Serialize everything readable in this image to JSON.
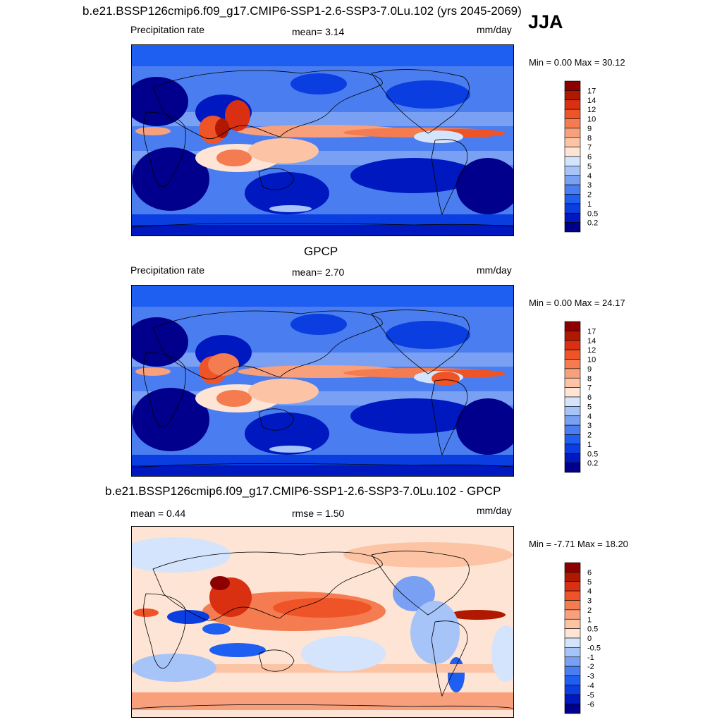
{
  "main_title": "b.e21.BSSP126cmip6.f09_g17.CMIP6-SSP1-2.6-SSP3-7.0Lu.102 (yrs 2045-2069)",
  "season": "JJA",
  "panels": [
    {
      "title": "",
      "left_label": "Precipitation rate",
      "center_label": "mean=   3.14",
      "right_label": "mm/day",
      "minmax": "Min =   0.00 Max =  30.12"
    },
    {
      "title": "GPCP",
      "left_label": "Precipitation rate",
      "center_label": "mean=   2.70",
      "right_label": "mm/day",
      "minmax": "Min =   0.00 Max =  24.17"
    },
    {
      "title": "b.e21.BSSP126cmip6.f09_g17.CMIP6-SSP1-2.6-SSP3-7.0Lu.102 - GPCP",
      "left_label": "mean =   0.44",
      "center_label": "rmse =   1.50",
      "right_label": "mm/day",
      "minmax": "Min =  -7.71 Max =  18.20"
    }
  ],
  "chart_data": [
    {
      "type": "heatmap",
      "title": "Precipitation rate",
      "units": "mm/day",
      "mean": 3.14,
      "min": 0.0,
      "max": 30.12,
      "colorbar": {
        "levels": [
          "0.2",
          "0.5",
          "1",
          "2",
          "3",
          "4",
          "5",
          "6",
          "7",
          "8",
          "9",
          "10",
          "12",
          "14",
          "17"
        ],
        "colors": [
          "#00008c",
          "#0018c0",
          "#0a3ee0",
          "#1e5ef0",
          "#4a7ef0",
          "#7aa0f4",
          "#a6c4f8",
          "#d4e4fc",
          "#fde4d4",
          "#fcc4a4",
          "#f8a07c",
          "#f47c50",
          "#ee5428",
          "#d83010",
          "#b01800",
          "#8c0000"
        ]
      }
    },
    {
      "type": "heatmap",
      "title": "GPCP",
      "units": "mm/day",
      "mean": 2.7,
      "min": 0.0,
      "max": 24.17,
      "colorbar": {
        "levels": [
          "0.2",
          "0.5",
          "1",
          "2",
          "3",
          "4",
          "5",
          "6",
          "7",
          "8",
          "9",
          "10",
          "12",
          "14",
          "17"
        ],
        "colors": [
          "#00008c",
          "#0018c0",
          "#0a3ee0",
          "#1e5ef0",
          "#4a7ef0",
          "#7aa0f4",
          "#a6c4f8",
          "#d4e4fc",
          "#fde4d4",
          "#fcc4a4",
          "#f8a07c",
          "#f47c50",
          "#ee5428",
          "#d83010",
          "#b01800",
          "#8c0000"
        ]
      }
    },
    {
      "type": "heatmap",
      "title": "b.e21.BSSP126cmip6.f09_g17.CMIP6-SSP1-2.6-SSP3-7.0Lu.102 - GPCP",
      "units": "mm/day",
      "mean": 0.44,
      "rmse": 1.5,
      "min": -7.71,
      "max": 18.2,
      "colorbar": {
        "levels": [
          "-6",
          "-5",
          "-4",
          "-3",
          "-2",
          "-1",
          "-0.5",
          "0",
          "0.5",
          "1",
          "2",
          "3",
          "4",
          "5",
          "6"
        ],
        "colors": [
          "#00008c",
          "#0018c0",
          "#0a3ee0",
          "#1e5ef0",
          "#4a7ef0",
          "#7aa0f4",
          "#a6c4f8",
          "#d4e4fc",
          "#fde4d4",
          "#fcc4a4",
          "#f8a07c",
          "#f47c50",
          "#ee5428",
          "#d83010",
          "#b01800",
          "#8c0000"
        ]
      }
    }
  ]
}
